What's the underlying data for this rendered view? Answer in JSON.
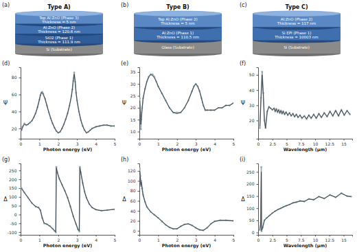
{
  "diagrams": [
    {
      "label": "(a)",
      "title": "Type A)",
      "layers": [
        {
          "name": "Top Al:ZnO (Phase 3)",
          "thickness": "Thickness = 5 nm"
        },
        {
          "name": "Al:ZnO (Phase 2)",
          "thickness": "Thickness = 120.6 nm"
        },
        {
          "name": "SiO2 (Phase 1)",
          "thickness": "Thickness = 111.9 nm"
        }
      ],
      "substrate": "Si (Substrate)"
    },
    {
      "label": "(b)",
      "title": "Type B)",
      "layers": [
        {
          "name": "Top Al:ZnO (Phase 2)",
          "thickness": "Thickness = 5 nm"
        },
        {
          "name": "Al:ZnO (Phase 1)",
          "thickness": "Thickness = 110.5 nm"
        }
      ],
      "substrate": "Glass (Substrate)"
    },
    {
      "label": "(c)",
      "title": "Type C)",
      "layers": [
        {
          "name": "Al:ZnO (Phase 2)",
          "thickness": "Thickness = 117 nm"
        },
        {
          "name": "Si EPI (Phase 1)",
          "thickness": "Thickness = 10003 nm"
        }
      ],
      "substrate": "Si (Substrate)"
    }
  ],
  "chart_data": [
    {
      "type": "line",
      "label": "(d)",
      "x_label": "Photon energy (eV)",
      "y_label": "Ψ",
      "grid": false,
      "x": [
        0.05,
        0.1,
        0.2,
        0.3,
        0.4,
        0.5,
        0.6,
        0.7,
        0.8,
        0.9,
        1.0,
        1.05,
        1.1,
        1.15,
        1.2,
        1.3,
        1.4,
        1.5,
        1.6,
        1.7,
        1.8,
        1.9,
        2.0,
        2.1,
        2.2,
        2.3,
        2.4,
        2.5,
        2.6,
        2.7,
        2.75,
        2.8,
        2.85,
        2.9,
        2.95,
        3.0,
        3.1,
        3.2,
        3.3,
        3.4,
        3.5,
        3.6,
        3.7,
        3.8,
        4.0,
        4.2,
        4.4,
        4.6,
        4.8,
        5.0
      ],
      "xlim": [
        0,
        5
      ],
      "xticks": [
        0,
        1,
        2,
        3,
        4,
        5
      ],
      "ylim": [
        8,
        92
      ],
      "yticks": [
        20,
        40,
        60,
        80
      ],
      "series": [
        {
          "color": "#8fa3ad",
          "marker": "circle",
          "line_style": "solid",
          "values": [
            18,
            22,
            26,
            24,
            25,
            27,
            29,
            33,
            38,
            45,
            54,
            59,
            62,
            63,
            61,
            55,
            47,
            39,
            32,
            26,
            21,
            17,
            15,
            16,
            20,
            25,
            31,
            38,
            47,
            58,
            66,
            76,
            86,
            75,
            62,
            53,
            40,
            30,
            23,
            18,
            15,
            16,
            18,
            20,
            22,
            23,
            24,
            24,
            23,
            23
          ]
        },
        {
          "color": "#3b3f44",
          "marker": "none",
          "line_style": "solid",
          "values": [
            18,
            21,
            25,
            24,
            25,
            27,
            29,
            33,
            38,
            45,
            54,
            59,
            62,
            62,
            60,
            55,
            47,
            39,
            32,
            26,
            21,
            17,
            15,
            16,
            20,
            25,
            31,
            38,
            47,
            58,
            66,
            77,
            84,
            76,
            62,
            53,
            40,
            30,
            23,
            18,
            15,
            16,
            18,
            20,
            22,
            23,
            24,
            24,
            23,
            23
          ]
        }
      ]
    },
    {
      "type": "line",
      "label": "(e)",
      "x_label": "Photon energy (eV)",
      "y_label": "Ψ",
      "grid": false,
      "x": [
        0.02,
        0.05,
        0.08,
        0.1,
        0.15,
        0.2,
        0.3,
        0.4,
        0.5,
        0.6,
        0.7,
        0.8,
        0.9,
        1.0,
        1.2,
        1.4,
        1.6,
        1.8,
        2.0,
        2.2,
        2.4,
        2.6,
        2.8,
        2.9,
        3.0,
        3.1,
        3.2,
        3.3,
        3.4,
        3.5,
        3.6,
        3.8,
        4.0,
        4.2,
        4.4,
        4.6,
        4.8,
        5.0
      ],
      "xlim": [
        0,
        5
      ],
      "xticks": [
        0,
        1,
        2,
        3,
        4,
        5
      ],
      "ylim": [
        7,
        37
      ],
      "yticks": [
        10,
        15,
        20,
        25,
        30,
        35
      ],
      "series": [
        {
          "color": "#8fa3ad",
          "marker": "circle",
          "line_style": "solid",
          "values": [
            24,
            18,
            11,
            15,
            20,
            24,
            28,
            31,
            33,
            34,
            34,
            33,
            31,
            29,
            26,
            23,
            20,
            18,
            18,
            18,
            20,
            23,
            27,
            29,
            30,
            29,
            27,
            24,
            21,
            19,
            19,
            19,
            19,
            20,
            20,
            21,
            21,
            22
          ]
        },
        {
          "color": "#3b3f44",
          "marker": "none",
          "line_style": "solid",
          "values": [
            23,
            19,
            13,
            15,
            20,
            24,
            28,
            31,
            33,
            34,
            33.5,
            32.5,
            31,
            29,
            26,
            23,
            20,
            18,
            17.5,
            18,
            20,
            23,
            27,
            29,
            30,
            29,
            27,
            24,
            21,
            19,
            19,
            19,
            19,
            20,
            20,
            21,
            21,
            22
          ]
        }
      ]
    },
    {
      "type": "line",
      "label": "(f)",
      "x_label": "Wavelength (μm)",
      "y_label": "Ψ",
      "grid": false,
      "x": [
        0.3,
        0.5,
        0.7,
        0.9,
        1.1,
        1.3,
        1.6,
        1.9,
        2.2,
        2.5,
        2.8,
        3.0,
        3.2,
        3.4,
        3.6,
        3.8,
        4.0,
        4.2,
        4.4,
        4.65,
        4.9,
        5.2,
        5.5,
        5.8,
        6.1,
        6.4,
        6.7,
        7.0,
        7.35,
        7.7,
        8.1,
        8.5,
        8.9,
        9.3,
        9.75,
        10.2,
        10.65,
        11.1,
        11.6,
        12.1,
        12.6,
        13.1,
        13.6,
        14.1,
        14.6,
        15.1,
        15.6,
        16.1
      ],
      "xlim": [
        0,
        16.5
      ],
      "xticks": [
        0,
        2.5,
        5,
        7.5,
        10,
        12.5,
        15
      ],
      "ylim": [
        8,
        55
      ],
      "yticks": [
        20,
        30,
        40,
        50
      ],
      "series": [
        {
          "color": "#8fa3ad",
          "marker": "circle",
          "line_style": "solid",
          "values": [
            15,
            35,
            52,
            38,
            20,
            15,
            26,
            29,
            28,
            27,
            28,
            26,
            27.5,
            25.5,
            27,
            25,
            26.5,
            24.5,
            26,
            24,
            25.5,
            23.5,
            25,
            23,
            24.5,
            22.5,
            24,
            22,
            23.5,
            21.5,
            23,
            21,
            23.5,
            21.5,
            24,
            21.5,
            24.5,
            22,
            25,
            22.5,
            26,
            23,
            26.5,
            23,
            27,
            23.5,
            26.5,
            24
          ]
        },
        {
          "color": "#3b3f44",
          "marker": "none",
          "line_style": "solid",
          "values": [
            16,
            34,
            50,
            37,
            20,
            15,
            26,
            29,
            28,
            27,
            28,
            26,
            27.5,
            25.5,
            27,
            25,
            26.5,
            24.5,
            26,
            24,
            25.5,
            23.5,
            25,
            23,
            24.5,
            22.5,
            24,
            22,
            23.5,
            21.5,
            23,
            21,
            23.5,
            21.5,
            24,
            21.5,
            24.5,
            22,
            25,
            22.5,
            26,
            23,
            26.5,
            23,
            27,
            23.5,
            26.5,
            24
          ]
        }
      ]
    },
    {
      "type": "line",
      "label": "(g)",
      "x_label": "Photon energy (eV)",
      "y_label": "Δ",
      "grid": false,
      "x": [
        0.05,
        0.2,
        0.4,
        0.6,
        0.8,
        0.95,
        1.05,
        1.15,
        1.25,
        1.4,
        1.55,
        1.7,
        1.8,
        1.87,
        1.9,
        1.95,
        2.05,
        2.2,
        2.35,
        2.5,
        2.65,
        2.8,
        2.95,
        3.05,
        3.12,
        3.15,
        3.2,
        3.3,
        3.4,
        3.5,
        3.65,
        3.8,
        4.0,
        4.3,
        4.6,
        5.0
      ],
      "xlim": [
        0,
        5
      ],
      "xticks": [
        0,
        1,
        2,
        3,
        4,
        5
      ],
      "ylim": [
        -115,
        290
      ],
      "yticks": [
        -100,
        -50,
        0,
        50,
        100,
        150,
        200,
        250
      ],
      "series": [
        {
          "color": "#8fa3ad",
          "marker": "circle",
          "line_style": "solid",
          "values": [
            150,
            125,
            95,
            65,
            45,
            40,
            25,
            -20,
            -50,
            -55,
            -65,
            -80,
            -92,
            -100,
            270,
            240,
            205,
            170,
            135,
            95,
            45,
            -10,
            -55,
            -85,
            -95,
            270,
            240,
            180,
            130,
            95,
            60,
            40,
            28,
            22,
            25,
            30
          ]
        },
        {
          "color": "#3b3f44",
          "marker": "none",
          "line_style": "solid",
          "values": [
            148,
            124,
            95,
            65,
            46,
            40,
            26,
            -18,
            -48,
            -55,
            -65,
            -80,
            -90,
            -98,
            265,
            240,
            205,
            170,
            135,
            95,
            45,
            -10,
            -55,
            -83,
            -93,
            265,
            238,
            180,
            130,
            95,
            60,
            40,
            28,
            22,
            25,
            30
          ]
        }
      ]
    },
    {
      "type": "line",
      "label": "(h)",
      "x_label": "Photon energy (eV)",
      "y_label": "Δ",
      "grid": false,
      "x": [
        0.02,
        0.05,
        0.08,
        0.1,
        0.15,
        0.2,
        0.3,
        0.4,
        0.6,
        0.8,
        1.0,
        1.2,
        1.4,
        1.6,
        1.8,
        2.0,
        2.2,
        2.4,
        2.6,
        2.8,
        3.0,
        3.2,
        3.4,
        3.6,
        3.8,
        4.0,
        4.3,
        4.6,
        5.0
      ],
      "xlim": [
        0,
        5
      ],
      "xticks": [
        0,
        1,
        2,
        3,
        4,
        5
      ],
      "ylim": [
        -8,
        135
      ],
      "yticks": [
        0,
        20,
        40,
        60,
        80,
        100,
        120
      ],
      "series": [
        {
          "color": "#8fa3ad",
          "marker": "circle",
          "line_style": "solid",
          "values": [
            125,
            110,
            90,
            100,
            85,
            72,
            58,
            48,
            38,
            32,
            26,
            19,
            12,
            7,
            4,
            4,
            9,
            13,
            14,
            11,
            6,
            2,
            1,
            6,
            14,
            19,
            21,
            21,
            20
          ]
        },
        {
          "color": "#3b3f44",
          "marker": "none",
          "line_style": "solid",
          "values": [
            120,
            108,
            92,
            98,
            84,
            71,
            58,
            48,
            38,
            32,
            26,
            19,
            12,
            7,
            4,
            4,
            9,
            13,
            14,
            11,
            6,
            2,
            1,
            6,
            14,
            19,
            21,
            21,
            20
          ]
        }
      ]
    },
    {
      "type": "line",
      "label": "(i)",
      "x_label": "Wavelength (μm)",
      "y_label": "Δ",
      "grid": false,
      "x": [
        0.3,
        0.45,
        0.55,
        0.6,
        0.8,
        1.1,
        1.5,
        2.0,
        2.5,
        3.0,
        3.5,
        4.0,
        4.4,
        4.9,
        5.5,
        6.1,
        6.7,
        7.35,
        8.1,
        8.9,
        9.75,
        10.65,
        11.6,
        12.6,
        13.6,
        14.6,
        15.6,
        16.3
      ],
      "xlim": [
        0,
        16.5
      ],
      "xticks": [
        0,
        2.5,
        5,
        7.5,
        10,
        12.5,
        15
      ],
      "ylim": [
        -10,
        285
      ],
      "yticks": [
        0,
        50,
        100,
        150,
        200,
        250
      ],
      "series": [
        {
          "color": "#8fa3ad",
          "marker": "circle",
          "line_style": "solid",
          "values": [
            10,
            40,
            270,
            5,
            20,
            50,
            60,
            70,
            80,
            88,
            95,
            100,
            105,
            110,
            115,
            122,
            125,
            130,
            128,
            138,
            135,
            148,
            140,
            155,
            145,
            162,
            150,
            148
          ]
        },
        {
          "color": "#3b3f44",
          "marker": "none",
          "line_style": "solid",
          "values": [
            12,
            38,
            250,
            8,
            22,
            50,
            60,
            70,
            80,
            88,
            95,
            100,
            105,
            110,
            115,
            122,
            125,
            130,
            128,
            138,
            135,
            148,
            140,
            155,
            145,
            162,
            150,
            148
          ]
        }
      ]
    }
  ]
}
